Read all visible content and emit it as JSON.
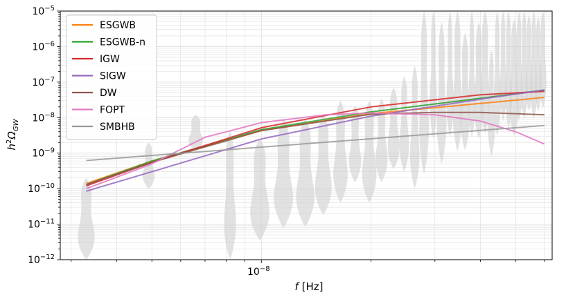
{
  "chart_data": {
    "type": "line",
    "xlabel": "f [Hz]",
    "ylabel": "h²Ω_GW",
    "x_scale": "log",
    "y_scale": "log",
    "xlim": [
      2.8e-09,
      6.3e-08
    ],
    "ylim": [
      1e-12,
      1e-05
    ],
    "grid": true,
    "legend_position": "top-left",
    "x_tick_labels": [
      {
        "value": 1e-08,
        "mantissa": "10",
        "exp": "−8"
      }
    ],
    "y_tick_labels": [
      {
        "value": 1e-05,
        "mantissa": "10",
        "exp": "−5"
      },
      {
        "value": 1e-06,
        "mantissa": "10",
        "exp": "−6"
      },
      {
        "value": 1e-07,
        "mantissa": "10",
        "exp": "−7"
      },
      {
        "value": 1e-08,
        "mantissa": "10",
        "exp": "−8"
      },
      {
        "value": 1e-09,
        "mantissa": "10",
        "exp": "−9"
      },
      {
        "value": 1e-10,
        "mantissa": "10",
        "exp": "−10"
      },
      {
        "value": 1e-11,
        "mantissa": "10",
        "exp": "−11"
      },
      {
        "value": 1e-12,
        "mantissa": "10",
        "exp": "−12"
      }
    ],
    "series": [
      {
        "name": "ESGWB",
        "color": "#ff7f0e",
        "x": [
          3.3e-09,
          5e-09,
          1e-08,
          2e-08,
          4e-08,
          6e-08
        ],
        "y": [
          1.4e-10,
          6e-10,
          4.3e-09,
          1.3e-08,
          2.5e-08,
          3.7e-08
        ]
      },
      {
        "name": "ESGWB-n",
        "color": "#2ca02c",
        "x": [
          3.3e-09,
          5e-09,
          1e-08,
          2e-08,
          4e-08,
          6e-08
        ],
        "y": [
          1.3e-10,
          6e-10,
          4.6e-09,
          1.45e-08,
          3.5e-08,
          6e-08
        ]
      },
      {
        "name": "IGW",
        "color": "#d62728",
        "x": [
          3.3e-09,
          5e-09,
          1e-08,
          2e-08,
          4e-08,
          6e-08
        ],
        "y": [
          1.2e-10,
          5.5e-10,
          5.2e-09,
          2e-08,
          4.4e-08,
          5.5e-08
        ]
      },
      {
        "name": "SIGW",
        "color": "#9467bd",
        "x": [
          3.3e-09,
          5e-09,
          1e-08,
          2e-08,
          4e-08,
          6e-08
        ],
        "y": [
          8.5e-11,
          3e-10,
          2.5e-09,
          1.1e-08,
          3.3e-08,
          6e-08
        ]
      },
      {
        "name": "DW",
        "color": "#8c564b",
        "x": [
          3.3e-09,
          5e-09,
          1e-08,
          2e-08,
          3e-08,
          4e-08,
          6e-08
        ],
        "y": [
          1.3e-10,
          5.5e-10,
          4.3e-09,
          1.25e-08,
          1.4e-08,
          1.4e-08,
          1.2e-08
        ]
      },
      {
        "name": "FOPT",
        "color": "#e377c2",
        "x": [
          3.3e-09,
          5e-09,
          7e-09,
          1e-08,
          1.5e-08,
          2e-08,
          3e-08,
          4e-08,
          5e-08,
          6e-08
        ],
        "y": [
          1e-10,
          5e-10,
          2.8e-09,
          7.2e-09,
          1.2e-08,
          1.35e-08,
          1.2e-08,
          8e-09,
          4e-09,
          1.8e-09
        ]
      },
      {
        "name": "SMBHB",
        "color": "#999999",
        "x": [
          3.3e-09,
          6e-08
        ],
        "y": [
          6.2e-10,
          6e-09
        ]
      }
    ],
    "violins": {
      "color": "#d3d3d3",
      "x": [
        3.3e-09,
        4.9e-09,
        6.6e-09,
        8.2e-09,
        9.9e-09,
        1.15e-08,
        1.32e-08,
        1.48e-08,
        1.65e-08,
        1.81e-08,
        1.98e-08,
        2.14e-08,
        2.31e-08,
        2.47e-08,
        2.64e-08,
        2.8e-08,
        2.97e-08,
        3.13e-08,
        3.3e-08,
        3.46e-08,
        3.63e-08,
        3.79e-08,
        3.96e-08,
        4.12e-08,
        4.29e-08,
        4.45e-08,
        4.62e-08,
        4.78e-08,
        4.95e-08,
        5.11e-08,
        5.28e-08,
        5.44e-08,
        5.61e-08,
        5.77e-08,
        5.94e-08
      ],
      "y_low": [
        1e-12,
        1e-10,
        1.2e-09,
        1e-12,
        3.5e-12,
        8e-12,
        8.5e-12,
        1.8e-11,
        4e-11,
        1.5e-10,
        4e-11,
        1.5e-10,
        3.5e-10,
        3e-10,
        1e-10,
        2.5e-10,
        2.5e-09,
        5e-10,
        2.8e-09,
        1.1e-09,
        1.2e-09,
        2.8e-09,
        2.5e-09,
        3.5e-09,
        8e-10,
        3e-09,
        8e-09,
        5e-09,
        3e-09,
        8e-09,
        9e-09,
        1.5e-08,
        9e-09,
        1.5e-08,
        1.8e-08
      ],
      "y_high": [
        2e-10,
        2e-09,
        1.2e-08,
        4.5e-09,
        2.5e-09,
        9e-09,
        9.5e-09,
        1.3e-08,
        3e-08,
        2.2e-08,
        3e-08,
        3.5e-08,
        7e-08,
        1.5e-07,
        3e-07,
        1e-05,
        1e-05,
        5e-06,
        1e-05,
        1e-05,
        2.5e-06,
        1e-05,
        5e-06,
        1e-05,
        8e-07,
        1e-05,
        1e-05,
        1e-05,
        6e-06,
        1e-05,
        1e-05,
        8e-06,
        1e-05,
        7e-06,
        1e-05
      ],
      "widths": [
        0.035,
        0.025,
        0.03,
        0.025,
        0.04,
        0.04,
        0.038,
        0.035,
        0.03,
        0.025,
        0.03,
        0.025,
        0.025,
        0.02,
        0.02,
        0.02,
        0.015,
        0.02,
        0.015,
        0.02,
        0.02,
        0.015,
        0.02,
        0.02,
        0.015,
        0.015,
        0.015,
        0.015,
        0.02,
        0.015,
        0.015,
        0.015,
        0.015,
        0.015,
        0.015
      ]
    }
  }
}
